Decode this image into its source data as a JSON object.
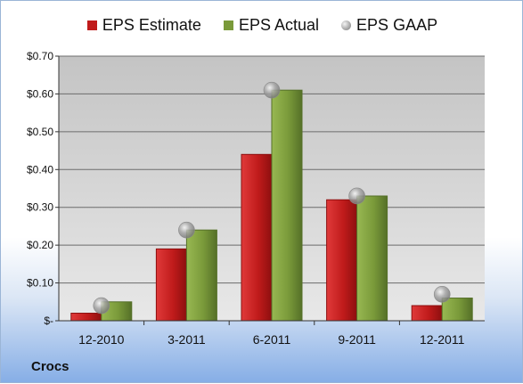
{
  "company": "Crocs",
  "colors": {
    "estimate": "#c01b1b",
    "estimate_dark": "#8d0f0f",
    "actual": "#7a9a3a",
    "actual_dark": "#557028",
    "gaap": "#a7a7a7",
    "plot_bg_top": "#c4c4c4",
    "plot_bg_bottom": "#e8e8e8",
    "grid": "#6c6c6c"
  },
  "chart_data": {
    "type": "bar",
    "title": "",
    "xlabel": "",
    "ylabel": "",
    "categories": [
      "12-2010",
      "3-2011",
      "6-2011",
      "9-2011",
      "12-2011"
    ],
    "series": [
      {
        "name": "EPS Estimate",
        "type": "bar",
        "values": [
          0.02,
          0.19,
          0.44,
          0.32,
          0.04
        ]
      },
      {
        "name": "EPS Actual",
        "type": "bar",
        "values": [
          0.05,
          0.24,
          0.61,
          0.33,
          0.06
        ]
      },
      {
        "name": "EPS GAAP",
        "type": "marker",
        "values": [
          0.04,
          0.24,
          0.61,
          0.33,
          0.07
        ]
      }
    ],
    "ylim": [
      0,
      0.7
    ],
    "yticks": [
      0,
      0.1,
      0.2,
      0.3,
      0.4,
      0.5,
      0.6,
      0.7
    ],
    "ytick_labels": [
      "$-",
      "$0.10",
      "$0.20",
      "$0.30",
      "$0.40",
      "$0.50",
      "$0.60",
      "$0.70"
    ],
    "grid": true,
    "legend_position": "top-center"
  }
}
